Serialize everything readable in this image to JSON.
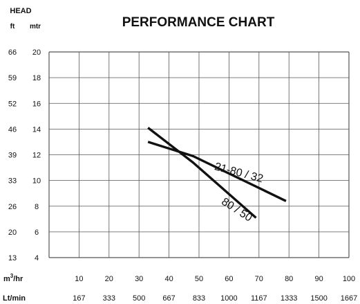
{
  "chart_data": {
    "type": "line",
    "title": "PERFORMANCE CHART",
    "y_header": "HEAD",
    "y_units": [
      "ft",
      "mtr"
    ],
    "y_mtr_ticks": [
      "20",
      "18",
      "16",
      "14",
      "12",
      "10",
      "8",
      "6",
      "4"
    ],
    "y_mtr_values": [
      20,
      18,
      16,
      14,
      12,
      10,
      8,
      6,
      4
    ],
    "y_ft_ticks": [
      "66",
      "59",
      "52",
      "46",
      "39",
      "33",
      "26",
      "20",
      "13"
    ],
    "ylim": [
      4,
      20
    ],
    "xlim": [
      0,
      100
    ],
    "x_row1_label": "m3/hr",
    "x_row1_label_base": "m",
    "x_row1_label_sup": "3",
    "x_row1_label_rest": "/hr",
    "x_row1_ticks": [
      "10",
      "20",
      "30",
      "40",
      "50",
      "60",
      "70",
      "80",
      "90",
      "100"
    ],
    "x_row1_values": [
      10,
      20,
      30,
      40,
      50,
      60,
      70,
      80,
      90,
      100
    ],
    "x_row2_label": "Lt/min",
    "x_row2_ticks": [
      "167",
      "333",
      "500",
      "667",
      "833",
      "1000",
      "1167",
      "1333",
      "1500",
      "1667"
    ],
    "grid": true,
    "series": [
      {
        "name": "21-80 / 32",
        "x": [
          33,
          48,
          79
        ],
        "y": [
          13.0,
          11.9,
          8.4
        ],
        "label_x": 63,
        "label_y": 10.35,
        "label_angle": 15
      },
      {
        "name": "80 / 50",
        "x": [
          33,
          48,
          69
        ],
        "y": [
          14.1,
          11.4,
          7.1
        ],
        "label_x": 62,
        "label_y": 7.5,
        "label_angle": 33
      }
    ]
  }
}
